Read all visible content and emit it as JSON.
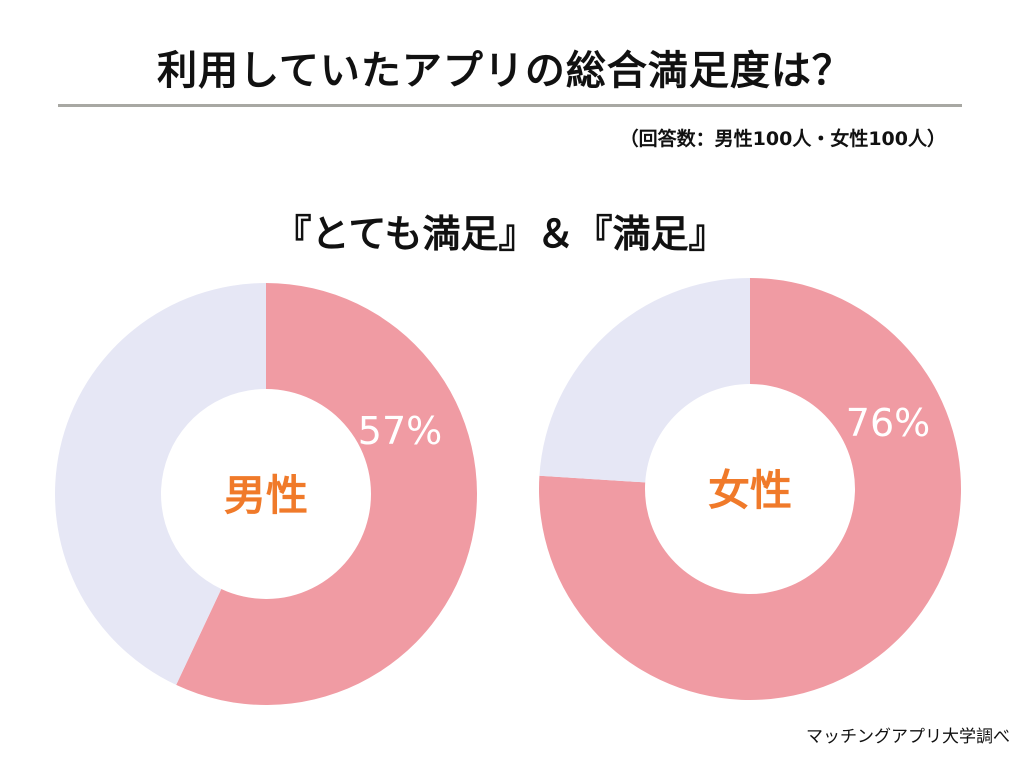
{
  "title": "利用していたアプリの総合満足度は？",
  "note": "（回答数：男性100人・女性100人）",
  "heading": "『とても満足』＆『満足』",
  "footer": "マッチングアプリ大学調べ",
  "colors": {
    "highlight": "#F09BA3",
    "rest": "#E6E7F5",
    "center_label": "#F07A2A",
    "value_label": "#FFFFFF"
  },
  "chart_data": [
    {
      "type": "pie",
      "donut": true,
      "center_label": "男性",
      "values": [
        57,
        43
      ],
      "data_label": "57%"
    },
    {
      "type": "pie",
      "donut": true,
      "center_label": "女性",
      "values": [
        76,
        24
      ],
      "data_label": "76%"
    }
  ]
}
